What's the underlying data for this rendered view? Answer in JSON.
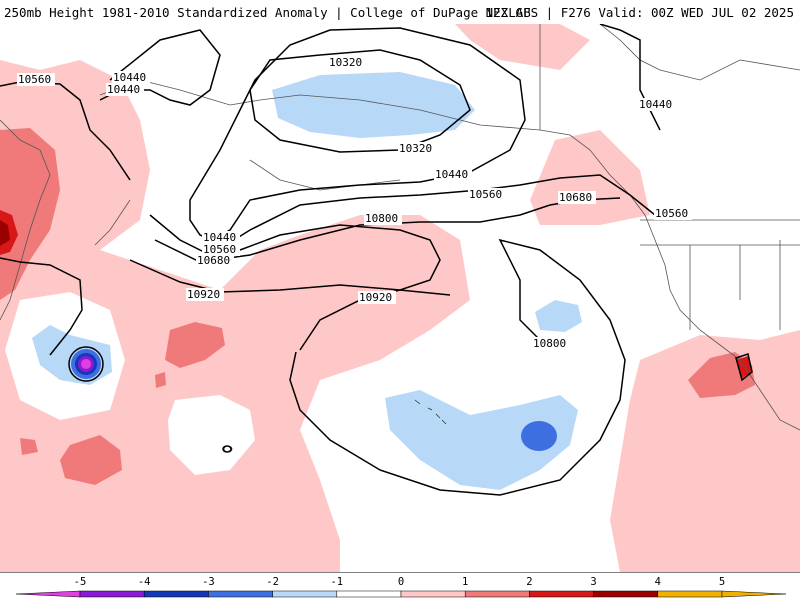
{
  "header": {
    "left": "250mb Height 1981-2010 Standardized Anomaly | College of DuPage NEXLAB",
    "right": "12Z GFS | F276 Valid: 00Z WED JUL 02 2025"
  },
  "contour_labels": [
    "10560",
    "10440",
    "10440",
    "10320",
    "10320",
    "10440",
    "10560",
    "10680",
    "10440",
    "10560",
    "10680",
    "10800",
    "10920",
    "10920",
    "10800",
    "10680",
    "10560",
    "10440"
  ],
  "colorbar": {
    "ticks": [
      "-5",
      "-4",
      "-3",
      "-2",
      "-1",
      "0",
      "1",
      "2",
      "3",
      "4",
      "5"
    ],
    "colors": [
      "#e040e0",
      "#8a1ad6",
      "#1438b8",
      "#3d6fe0",
      "#b8d8f8",
      "#ffffff",
      "#ffc8c8",
      "#f07a7a",
      "#d81818",
      "#9a0000",
      "#f0b000"
    ]
  }
}
